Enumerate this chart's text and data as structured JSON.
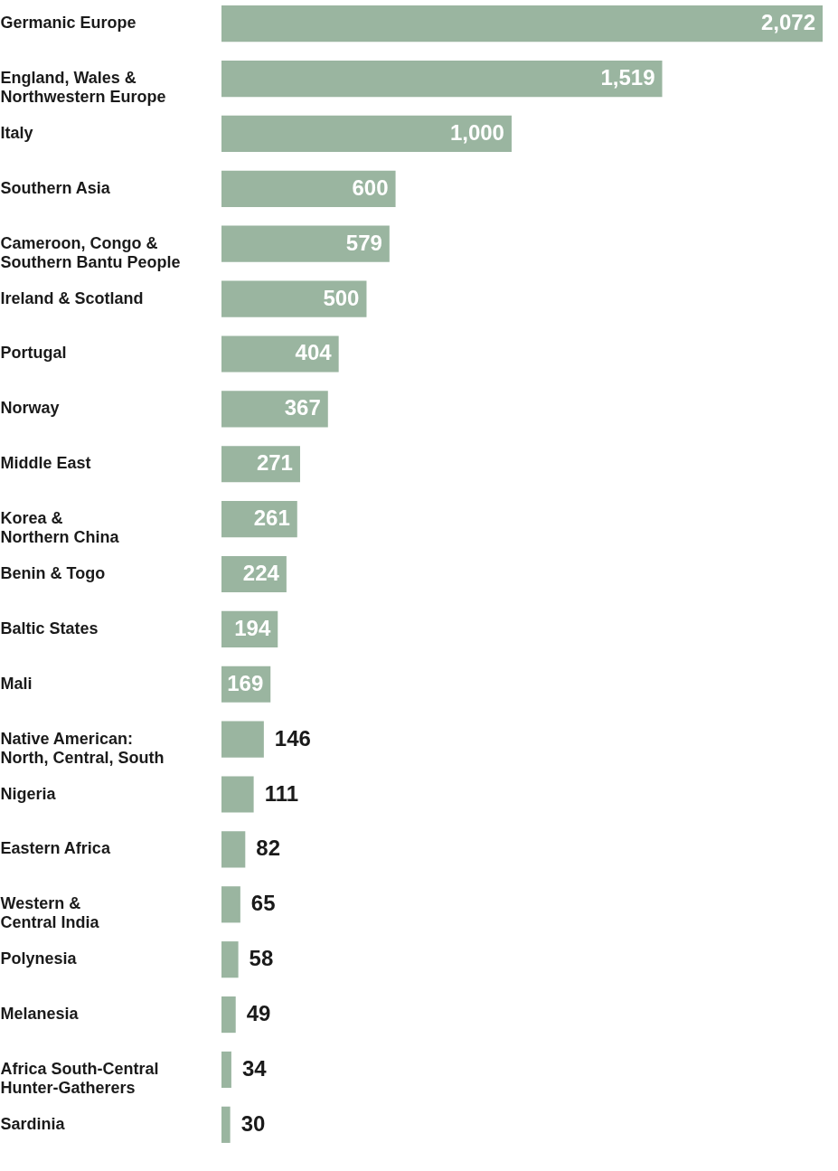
{
  "chart_data": {
    "type": "bar",
    "orientation": "horizontal",
    "color": "#9ab5a0",
    "value_labels": [
      "2,072",
      "1,519",
      "1,000",
      "600",
      "579",
      "500",
      "404",
      "367",
      "271",
      "261",
      "224",
      "194",
      "169",
      "146",
      "111",
      "82",
      "65",
      "58",
      "49",
      "34",
      "30"
    ],
    "categories": [
      "Germanic Europe",
      "England, Wales &\nNorthwestern Europe",
      "Italy",
      "Southern Asia",
      "Cameroon, Congo &\nSouthern Bantu People",
      "Ireland & Scotland",
      "Portugal",
      "Norway",
      "Middle East",
      "Korea &\nNorthern China",
      "Benin & Togo",
      "Baltic States",
      "Mali",
      "Native American:\nNorth, Central, South",
      "Nigeria",
      "Eastern Africa",
      "Western &\nCentral India",
      "Polynesia",
      "Melanesia",
      "Africa South-Central\nHunter-Gatherers",
      "Sardinia"
    ],
    "values": [
      2072,
      1519,
      1000,
      600,
      579,
      500,
      404,
      367,
      271,
      261,
      224,
      194,
      169,
      146,
      111,
      82,
      65,
      58,
      49,
      34,
      30
    ]
  }
}
